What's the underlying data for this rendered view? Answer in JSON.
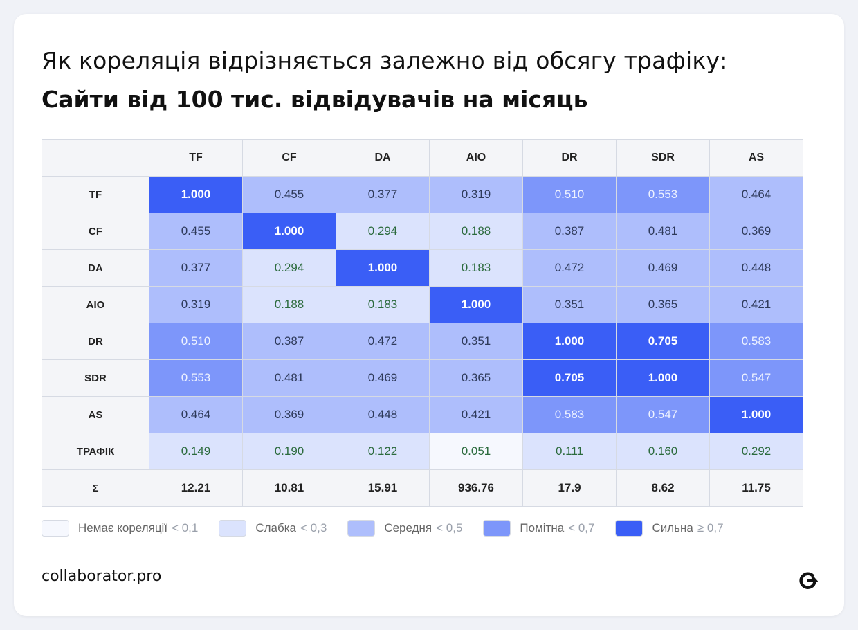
{
  "title": {
    "line1": "Як кореляція відрізняється залежно від обсягу трафіку:",
    "line2": "Сайти від 100 тис. відвідувачів на місяць"
  },
  "chart_data": {
    "type": "heatmap",
    "columns": [
      "TF",
      "CF",
      "DA",
      "AIO",
      "DR",
      "SDR",
      "AS"
    ],
    "rows": [
      "TF",
      "CF",
      "DA",
      "AIO",
      "DR",
      "SDR",
      "AS",
      "ТРАФІК"
    ],
    "values": [
      [
        "1.000",
        "0.455",
        "0.377",
        "0.319",
        "0.510",
        "0.553",
        "0.464"
      ],
      [
        "0.455",
        "1.000",
        "0.294",
        "0.188",
        "0.387",
        "0.481",
        "0.369"
      ],
      [
        "0.377",
        "0.294",
        "1.000",
        "0.183",
        "0.472",
        "0.469",
        "0.448"
      ],
      [
        "0.319",
        "0.188",
        "0.183",
        "1.000",
        "0.351",
        "0.365",
        "0.421"
      ],
      [
        "0.510",
        "0.387",
        "0.472",
        "0.351",
        "1.000",
        "0.705",
        "0.583"
      ],
      [
        "0.553",
        "0.481",
        "0.469",
        "0.365",
        "0.705",
        "1.000",
        "0.547"
      ],
      [
        "0.464",
        "0.369",
        "0.448",
        "0.421",
        "0.583",
        "0.547",
        "1.000"
      ],
      [
        "0.149",
        "0.190",
        "0.122",
        "0.051",
        "0.111",
        "0.160",
        "0.292"
      ]
    ],
    "sum_row": {
      "label": "Σ",
      "values": [
        "12.21",
        "10.81",
        "15.91",
        "936.76",
        "17.9",
        "8.62",
        "11.75"
      ]
    },
    "legend": [
      {
        "label": "Немає кореляції",
        "threshold": "< 0,1",
        "color": "#f6f8fe"
      },
      {
        "label": "Слабка",
        "threshold": "< 0,3",
        "color": "#dbe3fd"
      },
      {
        "label": "Середня",
        "threshold": "< 0,5",
        "color": "#aebefc"
      },
      {
        "label": "Помітна",
        "threshold": "< 0,7",
        "color": "#7d96fa"
      },
      {
        "label": "Сильна",
        "threshold": "≥ 0,7",
        "color": "#3a5ef6"
      }
    ]
  },
  "brand": "collaborator.pro",
  "logo_icon": "collaborator-logo-icon"
}
